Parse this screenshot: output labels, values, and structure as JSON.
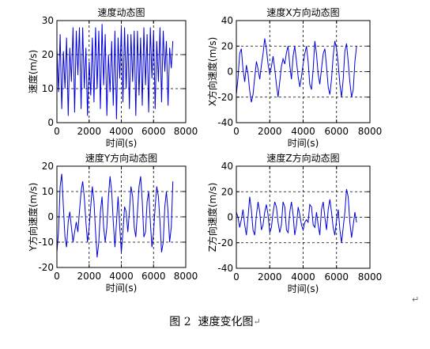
{
  "figure": {
    "caption_number": "图 2",
    "caption_text": "速度变化图",
    "para_mark": "↵"
  },
  "colors": {
    "line": "#0000dd",
    "grid": "#000000",
    "axis": "#000000"
  },
  "chart_data": [
    {
      "type": "line",
      "title": "速度动态图",
      "xlabel": "时间(s)",
      "ylabel": "速度(m/s)",
      "xlim": [
        0,
        8000
      ],
      "ylim": [
        0,
        30
      ],
      "xticks": [
        0,
        2000,
        4000,
        6000,
        8000
      ],
      "yticks": [
        0,
        10,
        20,
        30
      ],
      "grid": true,
      "series": [
        {
          "x": [
            0,
            100,
            200,
            300,
            400,
            500,
            600,
            700,
            800,
            900,
            1000,
            1100,
            1200,
            1300,
            1400,
            1500,
            1600,
            1700,
            1800,
            1900,
            2000,
            2100,
            2200,
            2300,
            2400,
            2500,
            2600,
            2700,
            2800,
            2900,
            3000,
            3100,
            3200,
            3300,
            3400,
            3500,
            3600,
            3700,
            3800,
            3900,
            4000,
            4100,
            4200,
            4300,
            4400,
            4500,
            4600,
            4700,
            4800,
            4900,
            5000,
            5100,
            5200,
            5300,
            5400,
            5500,
            5600,
            5700,
            5800,
            5900,
            6000,
            6100,
            6200,
            6300,
            6400,
            6500,
            6600,
            6700,
            6800,
            6900,
            7000,
            7100,
            7200
          ],
          "y": [
            22,
            9,
            26,
            4,
            21,
            10,
            25,
            2,
            22,
            12,
            28,
            3,
            27,
            14,
            28,
            4,
            28,
            10,
            22,
            2,
            18,
            8,
            25,
            6,
            28,
            10,
            27,
            4,
            29,
            11,
            26,
            2,
            20,
            9,
            24,
            5,
            27,
            1,
            25,
            13,
            28,
            6,
            28,
            10,
            26,
            4,
            26,
            12,
            27,
            2,
            27,
            8,
            25,
            5,
            28,
            11,
            26,
            3,
            28,
            13,
            27,
            4,
            24,
            12,
            28,
            6,
            27,
            15,
            24,
            5,
            22,
            16,
            24
          ]
        }
      ]
    },
    {
      "type": "line",
      "title": "速度X方向动态图",
      "xlabel": "时间(s)",
      "ylabel": "X方向速度(m/s)",
      "xlim": [
        0,
        8000
      ],
      "ylim": [
        -40,
        40
      ],
      "xticks": [
        0,
        2000,
        4000,
        6000,
        8000
      ],
      "yticks": [
        -40,
        -20,
        0,
        20,
        40
      ],
      "grid": true,
      "series": [
        {
          "x": [
            0,
            100,
            200,
            300,
            400,
            500,
            600,
            700,
            800,
            900,
            1000,
            1100,
            1200,
            1300,
            1400,
            1500,
            1600,
            1700,
            1800,
            1900,
            2000,
            2100,
            2200,
            2300,
            2400,
            2500,
            2600,
            2700,
            2800,
            2900,
            3000,
            3100,
            3200,
            3300,
            3400,
            3500,
            3600,
            3700,
            3800,
            3900,
            4000,
            4100,
            4200,
            4300,
            4400,
            4500,
            4600,
            4700,
            4800,
            4900,
            5000,
            5100,
            5200,
            5300,
            5400,
            5500,
            5600,
            5700,
            5800,
            5900,
            6000,
            6100,
            6200,
            6300,
            6400,
            6500,
            6600,
            6700,
            6800,
            6900,
            7000,
            7100,
            7200
          ],
          "y": [
            -18,
            -5,
            14,
            18,
            2,
            -8,
            5,
            -2,
            -15,
            -24,
            -18,
            -5,
            8,
            2,
            -6,
            5,
            14,
            26,
            18,
            6,
            -2,
            4,
            12,
            2,
            -10,
            -20,
            -8,
            4,
            10,
            6,
            15,
            20,
            5,
            -6,
            12,
            20,
            8,
            -4,
            -12,
            -4,
            6,
            14,
            20,
            8,
            -10,
            -14,
            2,
            24,
            14,
            -2,
            -10,
            2,
            14,
            18,
            4,
            -12,
            -18,
            -6,
            12,
            24,
            18,
            6,
            -10,
            -20,
            -6,
            16,
            22,
            8,
            -8,
            -20,
            -14,
            8,
            20
          ]
        }
      ]
    },
    {
      "type": "line",
      "title": "速度Y方向动态图",
      "xlabel": "时间(s)",
      "ylabel": "Y方向速度(m/s)",
      "xlim": [
        0,
        8000
      ],
      "ylim": [
        -20,
        20
      ],
      "xticks": [
        0,
        2000,
        4000,
        6000,
        8000
      ],
      "yticks": [
        -20,
        -10,
        0,
        10,
        20
      ],
      "grid": true,
      "series": [
        {
          "x": [
            0,
            100,
            200,
            300,
            400,
            500,
            600,
            700,
            800,
            900,
            1000,
            1100,
            1200,
            1300,
            1400,
            1500,
            1600,
            1700,
            1800,
            1900,
            2000,
            2100,
            2200,
            2300,
            2400,
            2500,
            2600,
            2700,
            2800,
            2900,
            3000,
            3100,
            3200,
            3300,
            3400,
            3500,
            3600,
            3700,
            3800,
            3900,
            4000,
            4100,
            4200,
            4300,
            4400,
            4500,
            4600,
            4700,
            4800,
            4900,
            5000,
            5100,
            5200,
            5300,
            5400,
            5500,
            5600,
            5700,
            5800,
            5900,
            6000,
            6100,
            6200,
            6300,
            6400,
            6500,
            6600,
            6700,
            6800,
            6900,
            7000,
            7100,
            7200
          ],
          "y": [
            -14,
            -6,
            12,
            17,
            4,
            -8,
            -12,
            -2,
            2,
            -4,
            -10,
            -6,
            -2,
            -6,
            2,
            10,
            14,
            8,
            -2,
            -10,
            -4,
            4,
            12,
            6,
            -6,
            -16,
            -10,
            2,
            8,
            -4,
            -10,
            -4,
            8,
            16,
            10,
            -2,
            -12,
            -2,
            8,
            -4,
            -14,
            -6,
            4,
            2,
            -6,
            2,
            12,
            8,
            -4,
            -8,
            2,
            12,
            16,
            6,
            -8,
            -6,
            6,
            10,
            -2,
            -12,
            -6,
            4,
            12,
            8,
            -2,
            -14,
            -10,
            4,
            10,
            2,
            -10,
            -4,
            14
          ]
        }
      ]
    },
    {
      "type": "line",
      "title": "速度Z方向动态图",
      "xlabel": "时间(s)",
      "ylabel": "Z方向速度(m/s)",
      "xlim": [
        0,
        8000
      ],
      "ylim": [
        -40,
        40
      ],
      "xticks": [
        0,
        2000,
        4000,
        6000,
        8000
      ],
      "yticks": [
        -40,
        -20,
        0,
        20,
        40
      ],
      "grid": true,
      "series": [
        {
          "x": [
            0,
            100,
            200,
            300,
            400,
            500,
            600,
            700,
            800,
            900,
            1000,
            1100,
            1200,
            1300,
            1400,
            1500,
            1600,
            1700,
            1800,
            1900,
            2000,
            2100,
            2200,
            2300,
            2400,
            2500,
            2600,
            2700,
            2800,
            2900,
            3000,
            3100,
            3200,
            3300,
            3400,
            3500,
            3600,
            3700,
            3800,
            3900,
            4000,
            4100,
            4200,
            4300,
            4400,
            4500,
            4600,
            4700,
            4800,
            4900,
            5000,
            5100,
            5200,
            5300,
            5400,
            5500,
            5600,
            5700,
            5800,
            5900,
            6000,
            6100,
            6200,
            6300,
            6400,
            6500,
            6600,
            6700,
            6800,
            6900,
            7000,
            7100,
            7200
          ],
          "y": [
            4,
            0,
            -8,
            -2,
            6,
            -6,
            -14,
            0,
            16,
            6,
            -10,
            -14,
            2,
            12,
            4,
            -10,
            -6,
            4,
            10,
            2,
            -12,
            -8,
            4,
            12,
            8,
            -4,
            -12,
            -6,
            12,
            8,
            -10,
            -12,
            4,
            12,
            2,
            -14,
            -6,
            8,
            2,
            -6,
            -10,
            -4,
            -2,
            -4,
            10,
            8,
            -6,
            -8,
            4,
            -6,
            -14,
            6,
            12,
            0,
            -10,
            6,
            14,
            4,
            -8,
            -14,
            -2,
            6,
            -10,
            -20,
            -8,
            4,
            22,
            16,
            -4,
            -16,
            -6,
            4,
            -4
          ]
        }
      ]
    }
  ]
}
